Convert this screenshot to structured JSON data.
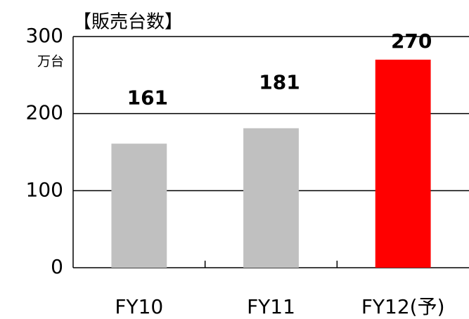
{
  "chart_data": {
    "type": "bar",
    "title": "【販売台数】",
    "unit_label": "万台",
    "categories": [
      "FY10",
      "FY11",
      "FY12(予)"
    ],
    "values": [
      161,
      181,
      270
    ],
    "colors": [
      "#c0c0c0",
      "#c0c0c0",
      "#ff0000"
    ],
    "ylim": [
      0,
      300
    ],
    "yticks": [
      0,
      100,
      200,
      300
    ],
    "grid": true
  }
}
